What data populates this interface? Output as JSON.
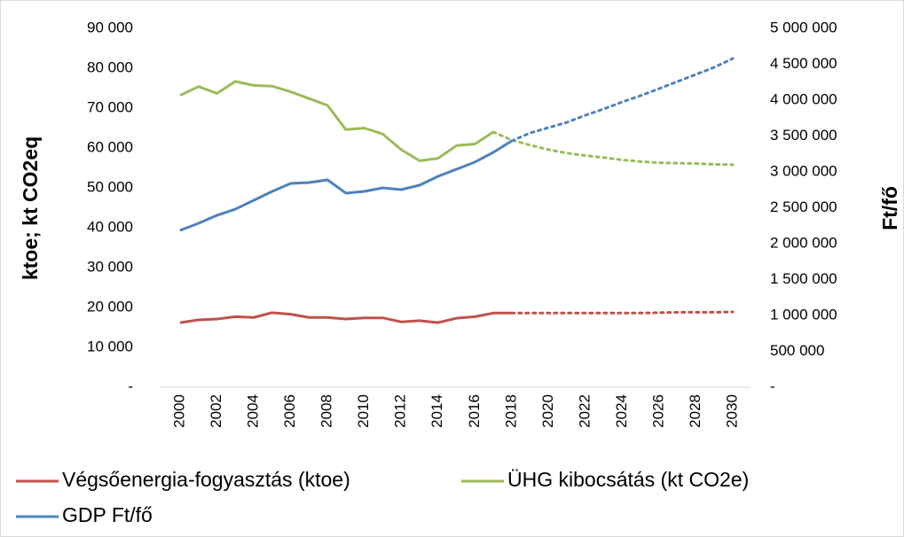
{
  "chart_data": {
    "type": "line",
    "y_label": "ktoe; kt CO2eq",
    "y2_label": "Ft/fő",
    "x": [
      2000,
      2001,
      2002,
      2003,
      2004,
      2005,
      2006,
      2007,
      2008,
      2009,
      2010,
      2011,
      2012,
      2013,
      2014,
      2015,
      2016,
      2017,
      2018,
      2019,
      2020,
      2021,
      2022,
      2023,
      2024,
      2025,
      2026,
      2027,
      2028,
      2029,
      2030
    ],
    "xlim": [
      2000,
      2030
    ],
    "xticks": [
      2000,
      2002,
      2004,
      2006,
      2008,
      2010,
      2012,
      2014,
      2016,
      2018,
      2020,
      2022,
      2024,
      2026,
      2028,
      2030
    ],
    "ylim": [
      0,
      90000
    ],
    "yticks": [
      {
        "value": 0,
        "label": "-"
      },
      {
        "value": 10000,
        "label": "10 000"
      },
      {
        "value": 20000,
        "label": "20 000"
      },
      {
        "value": 30000,
        "label": "30 000"
      },
      {
        "value": 40000,
        "label": "40 000"
      },
      {
        "value": 50000,
        "label": "50 000"
      },
      {
        "value": 60000,
        "label": "60 000"
      },
      {
        "value": 70000,
        "label": "70 000"
      },
      {
        "value": 80000,
        "label": "80 000"
      },
      {
        "value": 90000,
        "label": "90 000"
      }
    ],
    "y2lim": [
      0,
      5000000
    ],
    "y2ticks": [
      {
        "value": 0,
        "label": "-"
      },
      {
        "value": 500000,
        "label": "500 000"
      },
      {
        "value": 1000000,
        "label": "1 000 000"
      },
      {
        "value": 1500000,
        "label": "1 500 000"
      },
      {
        "value": 2000000,
        "label": "2 000 000"
      },
      {
        "value": 2500000,
        "label": "2 500 000"
      },
      {
        "value": 3000000,
        "label": "3 000 000"
      },
      {
        "value": 3500000,
        "label": "3 500 000"
      },
      {
        "value": 4000000,
        "label": "4 000 000"
      },
      {
        "value": 4500000,
        "label": "4 500 000"
      },
      {
        "value": 5000000,
        "label": "5 000 000"
      }
    ],
    "series": [
      {
        "name": "Végsőenergia-fogyasztás (ktoe)",
        "color": "#c0504d",
        "dotted_from": 2018,
        "values": [
          16200,
          16900,
          17100,
          17700,
          17500,
          18700,
          18300,
          17500,
          17500,
          17100,
          17400,
          17400,
          16400,
          16700,
          16200,
          17300,
          17700,
          18600,
          18600,
          18600,
          18600,
          18600,
          18600,
          18600,
          18600,
          18600,
          18700,
          18800,
          18800,
          18800,
          18900
        ]
      },
      {
        "name": "ÜHG kibocsátás (kt CO2e)",
        "color": "#9bbb59",
        "dotted_from": 2017,
        "values": [
          73200,
          75400,
          73700,
          76700,
          75700,
          75500,
          74100,
          72400,
          70700,
          64600,
          65000,
          63500,
          59600,
          56800,
          57400,
          60600,
          61000,
          64000,
          62000,
          60700,
          59600,
          58700,
          58100,
          57600,
          57000,
          56600,
          56300,
          56200,
          56100,
          55900,
          55800
        ]
      },
      {
        "name": "GDP Ft/fő",
        "color": "#4f81bd",
        "axis": "y2",
        "dotted_from": 2018,
        "values": [
          2185000,
          2284000,
          2395000,
          2481000,
          2605000,
          2728000,
          2840000,
          2852000,
          2889000,
          2704000,
          2728000,
          2778000,
          2753000,
          2815000,
          2938000,
          3037000,
          3136000,
          3272000,
          3432000,
          3543000,
          3617000,
          3691000,
          3790000,
          3877000,
          3975000,
          4062000,
          4160000,
          4259000,
          4358000,
          4457000,
          4580000
        ]
      }
    ]
  }
}
